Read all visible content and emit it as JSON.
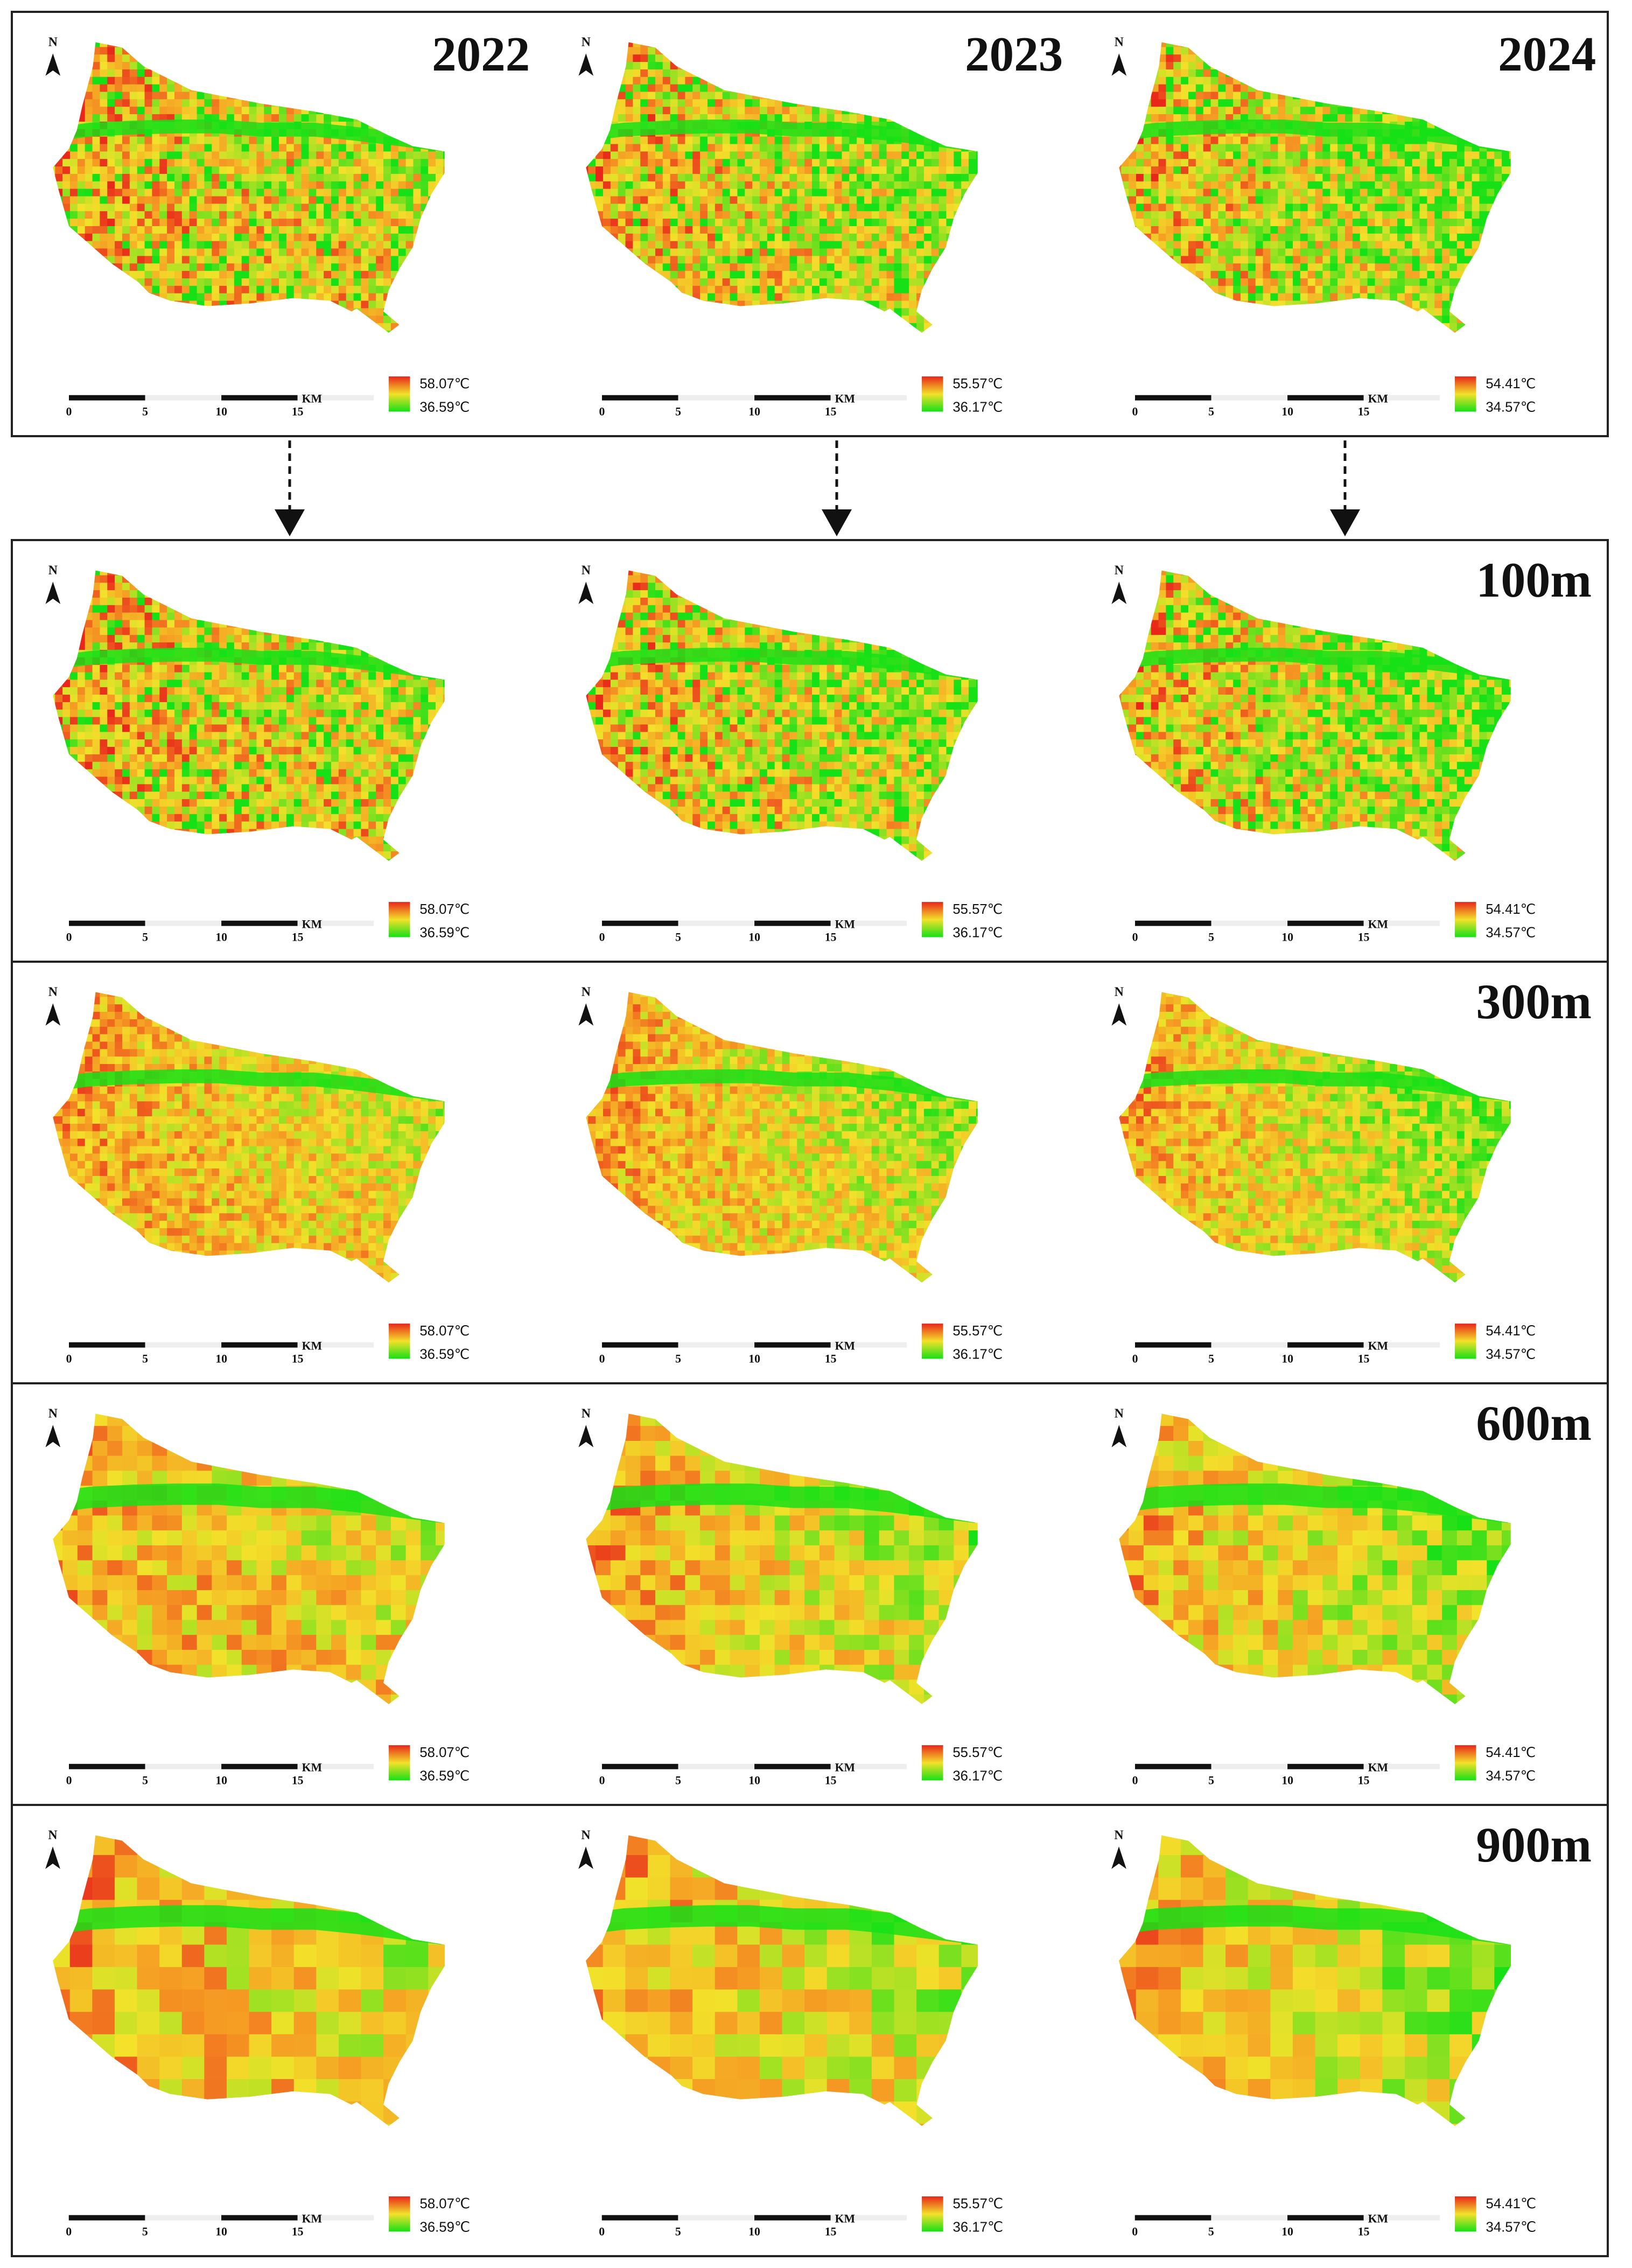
{
  "year_labels": [
    "2022",
    "2023",
    "2024"
  ],
  "resolution_labels": [
    "100m",
    "300m",
    "600m",
    "900m"
  ],
  "north_label": "N",
  "scale_bar": {
    "unit": "KM",
    "ticks": [
      "0",
      "5",
      "10",
      "15"
    ]
  },
  "legends": [
    {
      "max": "58.07℃",
      "min": "36.59℃"
    },
    {
      "max": "55.57℃",
      "min": "36.17℃"
    },
    {
      "max": "54.41℃",
      "min": "34.57℃"
    }
  ],
  "colors": {
    "hot": "#e8261a",
    "warm": "#f59a23",
    "mid": "#f3e12a",
    "cool": "#16e016",
    "frame": "#222222"
  },
  "icons": {
    "north_arrow": "north-arrow-icon",
    "flow_arrow": "dashed-down-arrow-icon"
  }
}
